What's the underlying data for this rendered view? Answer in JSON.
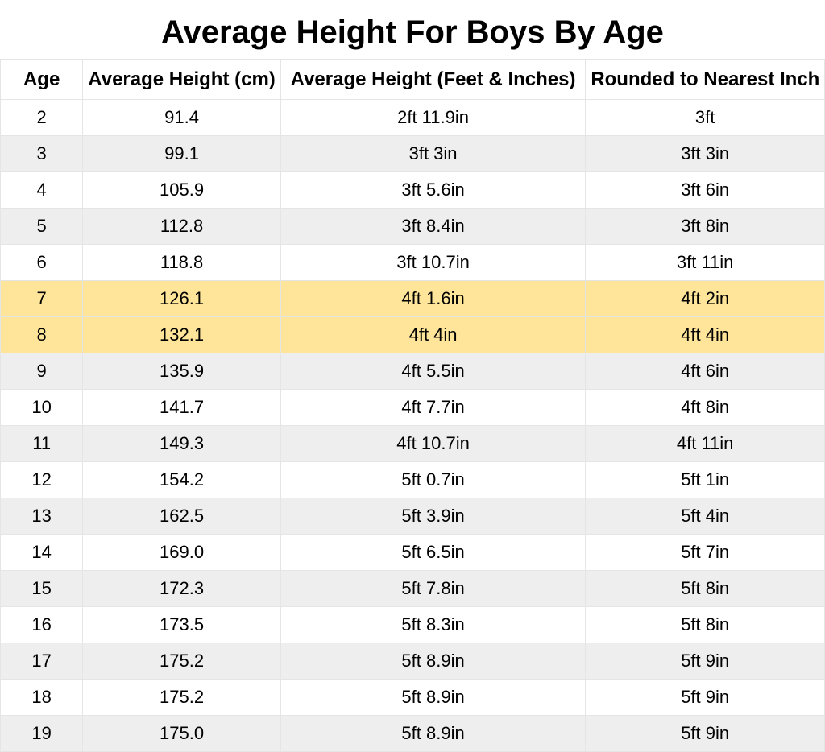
{
  "title": "Average Height For Boys By Age",
  "table": {
    "type": "table",
    "background_color": "#ffffff",
    "border_color": "#e5e5e5",
    "stripe_color": "#eeeeee",
    "highlight_color": "#ffe599",
    "title_fontsize": 40,
    "header_fontsize": 24,
    "cell_fontsize": 22,
    "columns": [
      {
        "label": "Age",
        "width_pct": 10,
        "align": "center"
      },
      {
        "label": "Average Height (cm)",
        "width_pct": 24,
        "align": "center"
      },
      {
        "label": "Average Height (Feet & Inches)",
        "width_pct": 37,
        "align": "center"
      },
      {
        "label": "Rounded to Nearest Inch",
        "width_pct": 29,
        "align": "center"
      }
    ],
    "rows": [
      {
        "age": "2",
        "cm": "91.4",
        "ftin": "2ft 11.9in",
        "rounded": "3ft",
        "highlight": false
      },
      {
        "age": "3",
        "cm": "99.1",
        "ftin": "3ft 3in",
        "rounded": "3ft 3in",
        "highlight": false
      },
      {
        "age": "4",
        "cm": "105.9",
        "ftin": "3ft 5.6in",
        "rounded": "3ft 6in",
        "highlight": false
      },
      {
        "age": "5",
        "cm": "112.8",
        "ftin": "3ft 8.4in",
        "rounded": "3ft 8in",
        "highlight": false
      },
      {
        "age": "6",
        "cm": "118.8",
        "ftin": "3ft 10.7in",
        "rounded": "3ft 11in",
        "highlight": false
      },
      {
        "age": "7",
        "cm": "126.1",
        "ftin": "4ft 1.6in",
        "rounded": "4ft 2in",
        "highlight": true
      },
      {
        "age": "8",
        "cm": "132.1",
        "ftin": "4ft 4in",
        "rounded": "4ft 4in",
        "highlight": true
      },
      {
        "age": "9",
        "cm": "135.9",
        "ftin": "4ft 5.5in",
        "rounded": "4ft 6in",
        "highlight": false
      },
      {
        "age": "10",
        "cm": "141.7",
        "ftin": "4ft 7.7in",
        "rounded": "4ft 8in",
        "highlight": false
      },
      {
        "age": "11",
        "cm": "149.3",
        "ftin": "4ft 10.7in",
        "rounded": "4ft 11in",
        "highlight": false
      },
      {
        "age": "12",
        "cm": "154.2",
        "ftin": "5ft 0.7in",
        "rounded": "5ft 1in",
        "highlight": false
      },
      {
        "age": "13",
        "cm": "162.5",
        "ftin": "5ft 3.9in",
        "rounded": "5ft 4in",
        "highlight": false
      },
      {
        "age": "14",
        "cm": "169.0",
        "ftin": "5ft 6.5in",
        "rounded": "5ft 7in",
        "highlight": false
      },
      {
        "age": "15",
        "cm": "172.3",
        "ftin": "5ft 7.8in",
        "rounded": "5ft 8in",
        "highlight": false
      },
      {
        "age": "16",
        "cm": "173.5",
        "ftin": "5ft 8.3in",
        "rounded": "5ft 8in",
        "highlight": false
      },
      {
        "age": "17",
        "cm": "175.2",
        "ftin": "5ft 8.9in",
        "rounded": "5ft 9in",
        "highlight": false
      },
      {
        "age": "18",
        "cm": "175.2",
        "ftin": "5ft 8.9in",
        "rounded": "5ft 9in",
        "highlight": false
      },
      {
        "age": "19",
        "cm": "175.0",
        "ftin": "5ft 8.9in",
        "rounded": "5ft 9in",
        "highlight": false
      }
    ]
  }
}
